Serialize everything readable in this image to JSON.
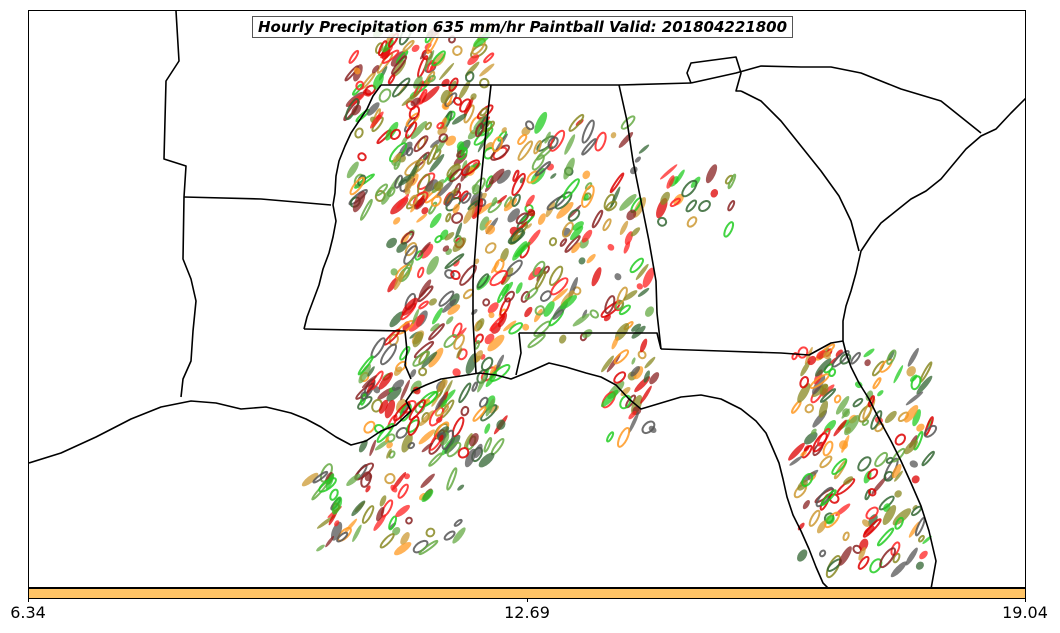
{
  "map": {
    "title": "Hourly Precipitation 635 mm/hr Paintball Valid: 201804221800",
    "colors": {
      "border": "#000000",
      "frame": "#000000",
      "paint": [
        "#22cc22",
        "#ff2222",
        "#ff9922",
        "#888822",
        "#882222",
        "#336633",
        "#555555",
        "#cc9933",
        "#66aa44",
        "#dd0000"
      ]
    }
  },
  "colorbar": {
    "color": "#ffc466",
    "ticks": [
      "6.34",
      "12.69",
      "19.04"
    ]
  }
}
